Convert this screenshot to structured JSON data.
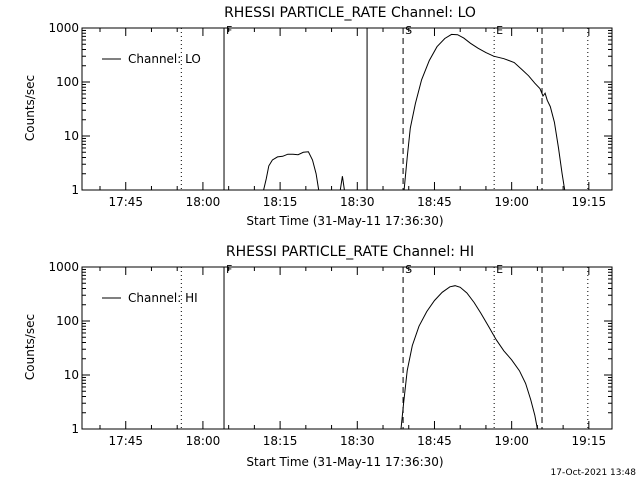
{
  "chart_data": [
    {
      "type": "line",
      "title": "RHESSI PARTICLE_RATE Channel: LO",
      "xlabel": "Start Time (31-May-11 17:36:30)",
      "ylabel": "Counts/sec",
      "yscale": "log",
      "ylim": [
        1,
        1000
      ],
      "xlim_minutes": [
        0,
        103
      ],
      "x_ticks": [
        {
          "min": 8.5,
          "label": "17:45"
        },
        {
          "min": 23.5,
          "label": "18:00"
        },
        {
          "min": 38.5,
          "label": "18:15"
        },
        {
          "min": 53.5,
          "label": "18:30"
        },
        {
          "min": 68.5,
          "label": "18:45"
        },
        {
          "min": 83.5,
          "label": "19:00"
        },
        {
          "min": 98.5,
          "label": "19:15"
        }
      ],
      "y_ticks": [
        {
          "v": 1,
          "label": "1"
        },
        {
          "v": 10,
          "label": "10"
        },
        {
          "v": 100,
          "label": "100"
        },
        {
          "v": 1000,
          "label": "1000"
        }
      ],
      "legend": {
        "label": "Channel: LO",
        "position": "top-left"
      },
      "markers": [
        {
          "min": 19.3,
          "style": "dotted",
          "label": ""
        },
        {
          "min": 27.6,
          "style": "solid",
          "label": "F"
        },
        {
          "min": 55.4,
          "style": "solid",
          "label": ""
        },
        {
          "min": 62.4,
          "style": "dashed",
          "label": "S"
        },
        {
          "min": 80.1,
          "style": "dotted",
          "label": "E"
        },
        {
          "min": 89.4,
          "style": "dashed",
          "label": ""
        },
        {
          "min": 98.3,
          "style": "dotted",
          "label": ""
        }
      ],
      "series": [
        {
          "name": "Channel: LO",
          "segments": [
            [
              [
                35.3,
                1
              ],
              [
                35.8,
                1.6
              ],
              [
                36.3,
                2.8
              ],
              [
                37,
                3.6
              ],
              [
                38,
                4.1
              ],
              [
                39,
                4.2
              ],
              [
                40,
                4.6
              ],
              [
                41,
                4.6
              ],
              [
                42,
                4.5
              ],
              [
                43,
                5.0
              ],
              [
                44,
                5.1
              ],
              [
                44.8,
                3.6
              ],
              [
                45.5,
                2.0
              ],
              [
                46.0,
                1
              ]
            ],
            [
              [
                50.2,
                1
              ],
              [
                50.6,
                1.8
              ],
              [
                51.0,
                1
              ]
            ],
            [
              [
                62.6,
                1
              ],
              [
                63.2,
                4
              ],
              [
                63.8,
                14
              ],
              [
                64.8,
                40
              ],
              [
                66,
                110
              ],
              [
                67.5,
                250
              ],
              [
                69,
                450
              ],
              [
                70.5,
                640
              ],
              [
                71.8,
                760
              ],
              [
                73,
                750
              ],
              [
                74.2,
                650
              ],
              [
                75.5,
                520
              ],
              [
                77,
                420
              ],
              [
                78.5,
                350
              ],
              [
                80,
                300
              ],
              [
                82,
                270
              ],
              [
                84,
                230
              ],
              [
                85.5,
                170
              ],
              [
                86.8,
                130
              ],
              [
                88,
                95
              ],
              [
                89,
                75
              ],
              [
                89.6,
                55
              ],
              [
                90,
                62
              ],
              [
                90.4,
                46
              ],
              [
                91,
                35
              ],
              [
                91.8,
                18
              ],
              [
                92.6,
                6
              ],
              [
                93.3,
                2
              ],
              [
                93.8,
                1
              ]
            ]
          ]
        }
      ]
    },
    {
      "type": "line",
      "title": "RHESSI PARTICLE_RATE Channel: HI",
      "xlabel": "Start Time (31-May-11 17:36:30)",
      "ylabel": "Counts/sec",
      "yscale": "log",
      "ylim": [
        1,
        1000
      ],
      "xlim_minutes": [
        0,
        103
      ],
      "x_ticks": [
        {
          "min": 8.5,
          "label": "17:45"
        },
        {
          "min": 23.5,
          "label": "18:00"
        },
        {
          "min": 38.5,
          "label": "18:15"
        },
        {
          "min": 53.5,
          "label": "18:30"
        },
        {
          "min": 68.5,
          "label": "18:45"
        },
        {
          "min": 83.5,
          "label": "19:00"
        },
        {
          "min": 98.5,
          "label": "19:15"
        }
      ],
      "y_ticks": [
        {
          "v": 1,
          "label": "1"
        },
        {
          "v": 10,
          "label": "10"
        },
        {
          "v": 100,
          "label": "100"
        },
        {
          "v": 1000,
          "label": "1000"
        }
      ],
      "legend": {
        "label": "Channel: HI",
        "position": "top-left"
      },
      "markers": [
        {
          "min": 19.3,
          "style": "dotted",
          "label": ""
        },
        {
          "min": 27.6,
          "style": "solid",
          "label": "F"
        },
        {
          "min": 62.4,
          "style": "dashed",
          "label": "S"
        },
        {
          "min": 80.1,
          "style": "dotted",
          "label": "E"
        },
        {
          "min": 89.4,
          "style": "dashed",
          "label": ""
        },
        {
          "min": 98.3,
          "style": "dotted",
          "label": ""
        }
      ],
      "series": [
        {
          "name": "Channel: HI",
          "segments": [
            [
              [
                62.0,
                1
              ],
              [
                62.5,
                3
              ],
              [
                63.2,
                12
              ],
              [
                64.2,
                35
              ],
              [
                65.5,
                80
              ],
              [
                67,
                150
              ],
              [
                68.5,
                240
              ],
              [
                70,
                340
              ],
              [
                71.5,
                430
              ],
              [
                72.5,
                450
              ],
              [
                73.5,
                420
              ],
              [
                74.8,
                330
              ],
              [
                76.2,
                220
              ],
              [
                77.5,
                140
              ],
              [
                79,
                80
              ],
              [
                80.5,
                45
              ],
              [
                82,
                28
              ],
              [
                83.5,
                19
              ],
              [
                85,
                12
              ],
              [
                86.2,
                7
              ],
              [
                87.2,
                3.5
              ],
              [
                88,
                1.8
              ],
              [
                88.5,
                1
              ]
            ]
          ]
        }
      ]
    }
  ],
  "footer": {
    "timestamp": "17-Oct-2021 13:48"
  }
}
